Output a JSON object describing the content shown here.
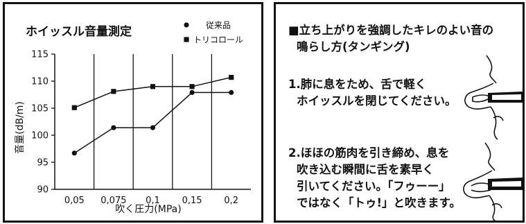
{
  "chart_data": {
    "type": "line",
    "title": "ホイッスル音量測定",
    "xlabel": "吹く圧力(MPa)",
    "ylabel": "音量(dB/m)",
    "categories": [
      "0,05",
      "0,075",
      "0,1",
      "0,15",
      "0,2"
    ],
    "ylim": [
      90,
      115
    ],
    "yticks": [
      90,
      95,
      100,
      105,
      110,
      115
    ],
    "grid": "vertical",
    "legend_position": "top-right",
    "series": [
      {
        "name": "従来品",
        "marker": "circle",
        "values": [
          96.7,
          101.4,
          101.4,
          107.9,
          107.9
        ]
      },
      {
        "name": "トリコロール",
        "marker": "square",
        "values": [
          105.1,
          108.1,
          109.0,
          109.0,
          110.7
        ]
      }
    ]
  },
  "instructions": {
    "heading_lines": [
      "■立ち上がりを強調したキレのよい音の",
      "鳴らし方(タンギング)"
    ],
    "step1_lines": [
      "1.肺に息をため、舌で軽く",
      "ホイッスルを閉じてください。"
    ],
    "step2_lines": [
      "2.ほほの筋肉を引き締め、息を",
      "吹き込む瞬間に舌を素早く",
      "引いてください。「フゥーー」",
      "ではなく「トゥ!」と吹きます。"
    ]
  }
}
